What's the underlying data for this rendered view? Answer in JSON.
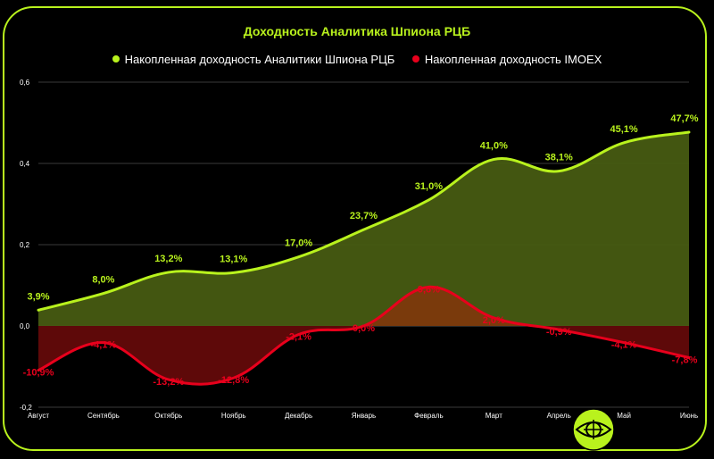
{
  "title": "Доходность Аналитика Шпиона РЦБ",
  "colors": {
    "accent": "#b9f21d",
    "red": "#e8001c"
  },
  "chart_data": {
    "type": "area",
    "title": "Доходность Аналитика Шпиона РЦБ",
    "categories": [
      "Август",
      "Сентябрь",
      "Октябрь",
      "Ноябрь",
      "Декабрь",
      "Январь",
      "Февраль",
      "Март",
      "Апрель",
      "Май",
      "Июнь"
    ],
    "series": [
      {
        "name": "Накопленная доходность Аналитики Шпиона РЦБ",
        "values": [
          0.039,
          0.08,
          0.132,
          0.131,
          0.17,
          0.237,
          0.31,
          0.41,
          0.381,
          0.451,
          0.477
        ],
        "labels": [
          "3,9%",
          "8,0%",
          "13,2%",
          "13,1%",
          "17,0%",
          "23,7%",
          "31,0%",
          "41,0%",
          "38,1%",
          "45,1%",
          "47,7%"
        ],
        "color": "#b9f21d"
      },
      {
        "name": "Накопленная доходность IMOEX",
        "values": [
          -0.109,
          -0.041,
          -0.132,
          -0.128,
          -0.021,
          0.0,
          0.096,
          0.02,
          -0.009,
          -0.041,
          -0.078
        ],
        "labels": [
          "-10,9%",
          "-4,1%",
          "-13,2%",
          "-12,8%",
          "-2,1%",
          "0,0%",
          "9,6%",
          "2,0%",
          "-0,9%",
          "-4,1%",
          "-7,8%"
        ],
        "color": "#e8001c"
      }
    ],
    "yticks": [
      "0,6",
      "0,4",
      "0,2",
      "0,0",
      "-0,2"
    ],
    "ytick_values": [
      0.6,
      0.4,
      0.2,
      0.0,
      -0.2
    ],
    "ylim": [
      -0.2,
      0.6
    ],
    "grid": true,
    "legend": "top"
  }
}
